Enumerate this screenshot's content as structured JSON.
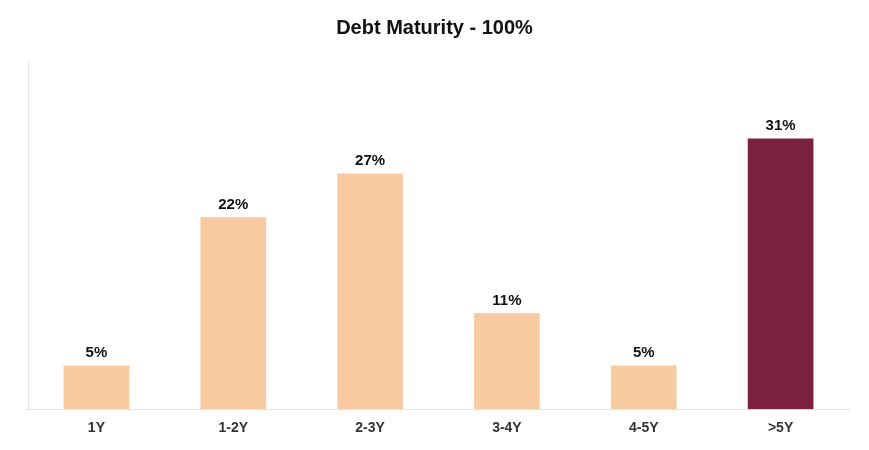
{
  "chart_data": {
    "type": "bar",
    "title": "Debt Maturity - 100%",
    "categories": [
      "1Y",
      "1-2Y",
      "2-3Y",
      "3-4Y",
      "4-5Y",
      ">5Y"
    ],
    "values": [
      5,
      22,
      27,
      11,
      5,
      31
    ],
    "value_labels": [
      "5%",
      "22%",
      "27%",
      "11%",
      "5%",
      "31%"
    ],
    "colors": [
      "#F9C9A0",
      "#F9C9A0",
      "#F9C9A0",
      "#F9C9A0",
      "#F9C9A0",
      "#7B2040"
    ],
    "ylim": [
      0,
      40
    ],
    "grid": false,
    "data_labels": true,
    "tick_labels": "x"
  }
}
